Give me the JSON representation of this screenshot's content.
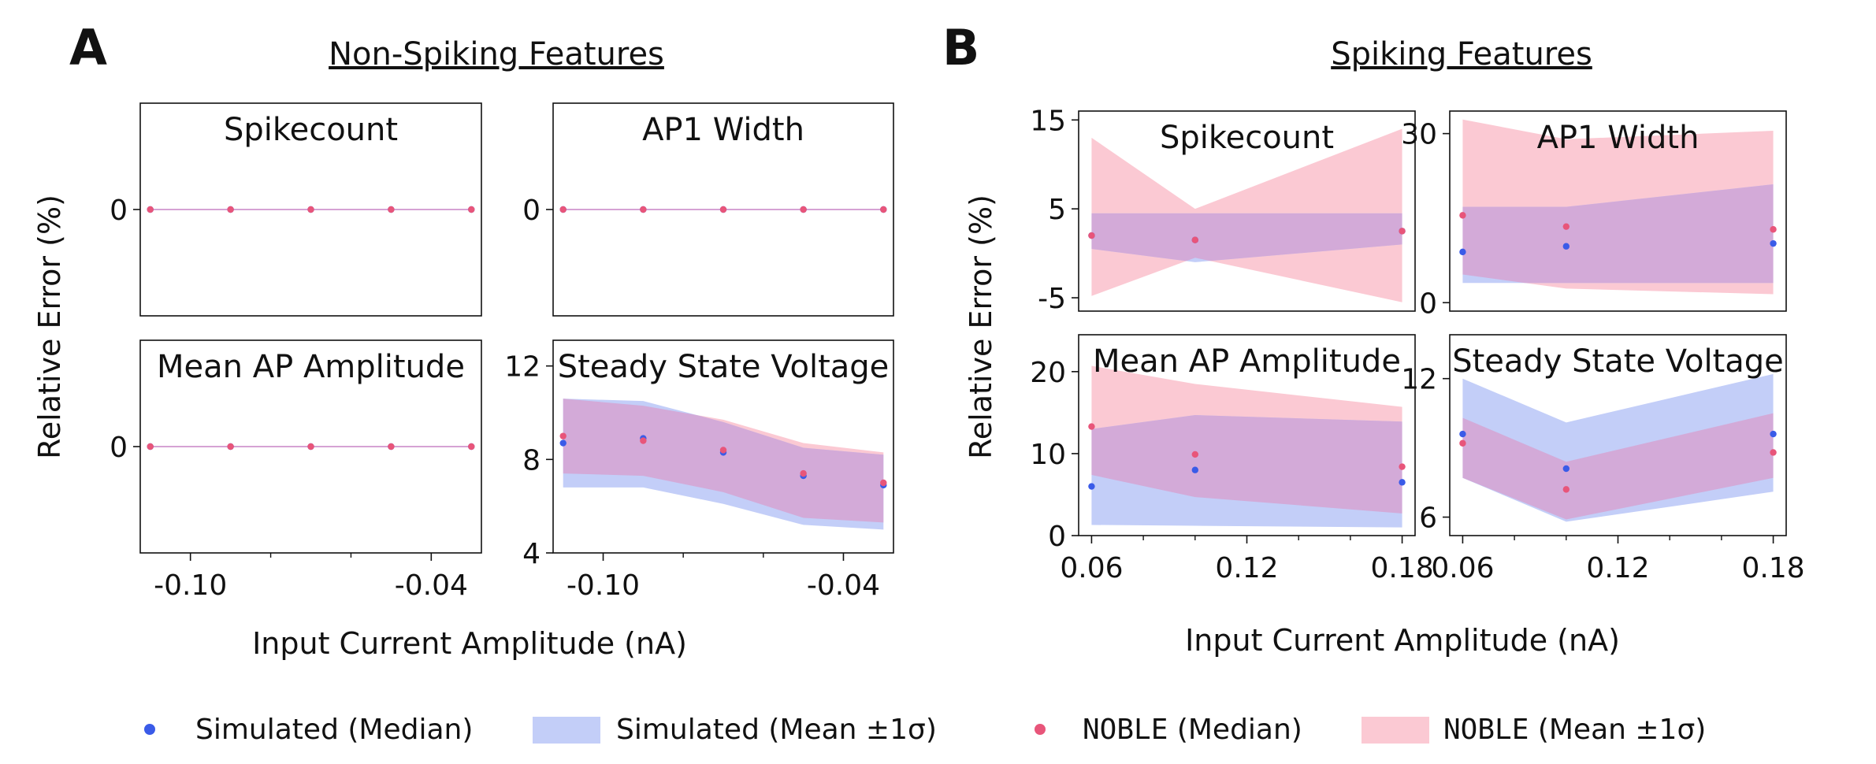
{
  "figure": {
    "panel_a_letter": "A",
    "panel_b_letter": "B",
    "panel_a_title": "Non-Spiking Features",
    "panel_b_title": "Spiking Features",
    "ylabel": "Relative Error (%)",
    "xlabel": "Input Current Amplitude (nA)"
  },
  "colors": {
    "simulated_point": "#3a5be8",
    "simulated_band": "#c3cef8",
    "noble_point": "#e8557a",
    "noble_band": "#fbc9d3",
    "overlap_band": "#d3aad8",
    "flat_line": "#c883c6",
    "axis": "#111111"
  },
  "legend": {
    "items": [
      {
        "label": "Simulated (Median)",
        "kind": "point",
        "color_key": "simulated_point"
      },
      {
        "label": "Simulated (Mean ±1σ)",
        "kind": "band",
        "color_key": "simulated_band"
      },
      {
        "prefix": "NOBLE",
        "label": " (Median)",
        "kind": "point",
        "color_key": "noble_point"
      },
      {
        "prefix": "NOBLE",
        "label": " (Mean ±1σ)",
        "kind": "band",
        "color_key": "noble_band"
      }
    ]
  },
  "chart_data": [
    {
      "id": "a-spikecount",
      "type": "scatter",
      "title": "Spikecount",
      "x": [
        -0.11,
        -0.09,
        -0.07,
        -0.05,
        -0.03
      ],
      "xlim": [
        -0.1125,
        -0.0275
      ],
      "ylim": [
        -1,
        1
      ],
      "yticks": [
        0
      ],
      "ytick_labels": [
        "0"
      ],
      "xticks": [],
      "xtick_labels": [],
      "xminor": [],
      "flat_line": 0,
      "series": [
        {
          "name": "Simulated (Median)",
          "values": [
            0,
            0,
            0,
            0,
            0
          ],
          "lower": [
            0,
            0,
            0,
            0,
            0
          ],
          "upper": [
            0,
            0,
            0,
            0,
            0
          ]
        },
        {
          "name": "NOBLE (Median)",
          "values": [
            0,
            0,
            0,
            0,
            0
          ],
          "lower": [
            0,
            0,
            0,
            0,
            0
          ],
          "upper": [
            0,
            0,
            0,
            0,
            0
          ]
        }
      ]
    },
    {
      "id": "a-ap1-width",
      "type": "scatter",
      "title": "AP1 Width",
      "x": [
        -0.11,
        -0.09,
        -0.07,
        -0.05,
        -0.03
      ],
      "xlim": [
        -0.1125,
        -0.0275
      ],
      "ylim": [
        -1,
        1
      ],
      "yticks": [
        0
      ],
      "ytick_labels": [
        "0"
      ],
      "xticks": [],
      "xtick_labels": [],
      "xminor": [],
      "flat_line": 0,
      "series": [
        {
          "name": "Simulated (Median)",
          "values": [
            0,
            0,
            0,
            0,
            0
          ],
          "lower": [
            0,
            0,
            0,
            0,
            0
          ],
          "upper": [
            0,
            0,
            0,
            0,
            0
          ]
        },
        {
          "name": "NOBLE (Median)",
          "values": [
            0,
            0,
            0,
            0,
            0
          ],
          "lower": [
            0,
            0,
            0,
            0,
            0
          ],
          "upper": [
            0,
            0,
            0,
            0,
            0
          ]
        }
      ]
    },
    {
      "id": "a-mean-ap-amplitude",
      "type": "scatter",
      "title": "Mean AP Amplitude",
      "x": [
        -0.11,
        -0.09,
        -0.07,
        -0.05,
        -0.03
      ],
      "xlim": [
        -0.1125,
        -0.0275
      ],
      "ylim": [
        -1,
        1
      ],
      "yticks": [
        0
      ],
      "ytick_labels": [
        "0"
      ],
      "xticks": [
        -0.1,
        -0.04
      ],
      "xtick_labels": [
        "-0.10",
        "-0.04"
      ],
      "xminor": [
        -0.08,
        -0.06
      ],
      "flat_line": 0,
      "series": [
        {
          "name": "Simulated (Median)",
          "values": [
            0,
            0,
            0,
            0,
            0
          ],
          "lower": [
            0,
            0,
            0,
            0,
            0
          ],
          "upper": [
            0,
            0,
            0,
            0,
            0
          ]
        },
        {
          "name": "NOBLE (Median)",
          "values": [
            0,
            0,
            0,
            0,
            0
          ],
          "lower": [
            0,
            0,
            0,
            0,
            0
          ],
          "upper": [
            0,
            0,
            0,
            0,
            0
          ]
        }
      ]
    },
    {
      "id": "a-steady-state-voltage",
      "type": "area",
      "title": "Steady State Voltage",
      "x": [
        -0.11,
        -0.09,
        -0.07,
        -0.05,
        -0.03
      ],
      "xlim": [
        -0.1125,
        -0.0275
      ],
      "ylim": [
        4,
        13.1
      ],
      "yticks": [
        4,
        8,
        12
      ],
      "ytick_labels": [
        "4",
        "8",
        "12"
      ],
      "xticks": [
        -0.1,
        -0.04
      ],
      "xtick_labels": [
        "-0.10",
        "-0.04"
      ],
      "xminor": [
        -0.08,
        -0.06
      ],
      "series": [
        {
          "name": "Simulated (Median)",
          "values": [
            8.7,
            8.9,
            8.3,
            7.3,
            6.9
          ],
          "lower": [
            6.8,
            6.8,
            6.1,
            5.2,
            5.0
          ],
          "upper": [
            10.6,
            10.5,
            9.6,
            8.5,
            8.2
          ]
        },
        {
          "name": "NOBLE (Median)",
          "values": [
            9.0,
            8.8,
            8.4,
            7.4,
            7.0
          ],
          "lower": [
            7.4,
            7.3,
            6.6,
            5.5,
            5.3
          ],
          "upper": [
            10.6,
            10.3,
            9.7,
            8.7,
            8.3
          ]
        }
      ]
    },
    {
      "id": "b-spikecount",
      "type": "area",
      "title": "Spikecount",
      "x": [
        0.06,
        0.1,
        0.18
      ],
      "xlim": [
        0.055,
        0.185
      ],
      "ylim": [
        -6.5,
        16
      ],
      "yticks": [
        -5,
        5,
        15
      ],
      "ytick_labels": [
        "-5",
        "5",
        "15"
      ],
      "xticks": [],
      "xtick_labels": [],
      "xminor": [],
      "series": [
        {
          "name": "Simulated (Median)",
          "values": [
            2,
            1.5,
            2.5
          ],
          "lower": [
            0.5,
            -1,
            1
          ],
          "upper": [
            4.5,
            4.5,
            4.5
          ]
        },
        {
          "name": "NOBLE (Median)",
          "values": [
            2,
            1.5,
            2.5
          ],
          "lower": [
            -4.8,
            -0.5,
            -5.5
          ],
          "upper": [
            13,
            5,
            14
          ]
        }
      ]
    },
    {
      "id": "b-ap1-width",
      "type": "area",
      "title": "AP1 Width",
      "x": [
        0.06,
        0.1,
        0.18
      ],
      "xlim": [
        0.055,
        0.185
      ],
      "ylim": [
        -1.5,
        34
      ],
      "yticks": [
        0,
        30
      ],
      "ytick_labels": [
        "0",
        "30"
      ],
      "xticks": [],
      "xtick_labels": [],
      "xminor": [],
      "series": [
        {
          "name": "Simulated (Median)",
          "values": [
            9,
            10,
            10.5
          ],
          "lower": [
            3.5,
            3.5,
            3.5
          ],
          "upper": [
            17,
            17,
            21
          ]
        },
        {
          "name": "NOBLE (Median)",
          "values": [
            15.5,
            13.5,
            13
          ],
          "lower": [
            5,
            2.5,
            1.5
          ],
          "upper": [
            32.5,
            29,
            30.5
          ]
        }
      ]
    },
    {
      "id": "b-mean-ap-amplitude",
      "type": "area",
      "title": "Mean AP Amplitude",
      "x": [
        0.06,
        0.1,
        0.18
      ],
      "xlim": [
        0.055,
        0.185
      ],
      "ylim": [
        0,
        24.5
      ],
      "yticks": [
        0,
        10,
        20
      ],
      "ytick_labels": [
        "0",
        "10",
        "20"
      ],
      "xticks": [
        0.06,
        0.12,
        0.18
      ],
      "xtick_labels": [
        "0.06",
        "0.12",
        "0.18"
      ],
      "xminor": [
        0.08,
        0.1,
        0.14,
        0.16
      ],
      "series": [
        {
          "name": "Simulated (Median)",
          "values": [
            6,
            8,
            6.5
          ],
          "lower": [
            1.3,
            1.2,
            1.0
          ],
          "upper": [
            13.0,
            14.7,
            13.9
          ]
        },
        {
          "name": "NOBLE (Median)",
          "values": [
            13.3,
            9.9,
            8.4
          ],
          "lower": [
            7.4,
            4.7,
            2.7
          ],
          "upper": [
            20.7,
            18.5,
            15.7
          ]
        }
      ]
    },
    {
      "id": "b-steady-state-voltage",
      "type": "area",
      "title": "Steady State Voltage",
      "x": [
        0.06,
        0.1,
        0.18
      ],
      "xlim": [
        0.055,
        0.185
      ],
      "ylim": [
        5.2,
        13.9
      ],
      "yticks": [
        6,
        12
      ],
      "ytick_labels": [
        "6",
        "12"
      ],
      "xticks": [
        0.06,
        0.12,
        0.18
      ],
      "xtick_labels": [
        "0.06",
        "0.12",
        "0.18"
      ],
      "xminor": [
        0.08,
        0.1,
        0.14,
        0.16
      ],
      "series": [
        {
          "name": "Simulated (Median)",
          "values": [
            9.6,
            8.1,
            9.6
          ],
          "lower": [
            7.7,
            5.8,
            7.1
          ],
          "upper": [
            12.0,
            10.1,
            12.2
          ]
        },
        {
          "name": "NOBLE (Median)",
          "values": [
            9.2,
            7.2,
            8.8
          ],
          "lower": [
            7.7,
            5.9,
            7.7
          ],
          "upper": [
            10.3,
            8.4,
            10.5
          ]
        }
      ]
    }
  ]
}
